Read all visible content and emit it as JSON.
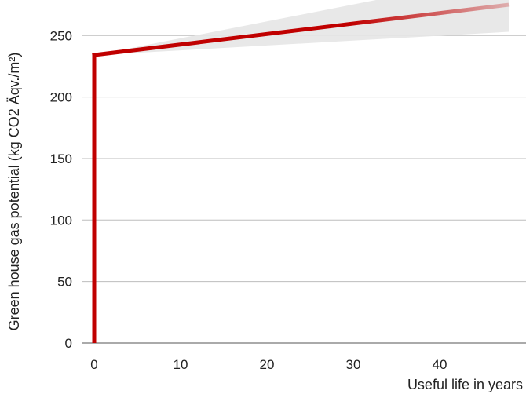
{
  "chart_data": {
    "type": "line",
    "xlabel": "Useful life in years",
    "ylabel": "Green house gas potential (kg CO2 Äqv./m²)",
    "xlim": [
      0,
      50
    ],
    "ylim": [
      0,
      260
    ],
    "xticks": [
      0,
      10,
      20,
      30,
      40
    ],
    "yticks": [
      0,
      50,
      100,
      150,
      200,
      250
    ],
    "grid": "horizontal",
    "series": [
      {
        "color": "#c00000",
        "x": [
          0,
          0,
          48
        ],
        "y": [
          0,
          234,
          275
        ]
      }
    ],
    "uncertainty_band": {
      "color": "#e6e6e6",
      "x": [
        0,
        48
      ],
      "upper": [
        234,
        300
      ],
      "lower": [
        234,
        253
      ]
    }
  }
}
